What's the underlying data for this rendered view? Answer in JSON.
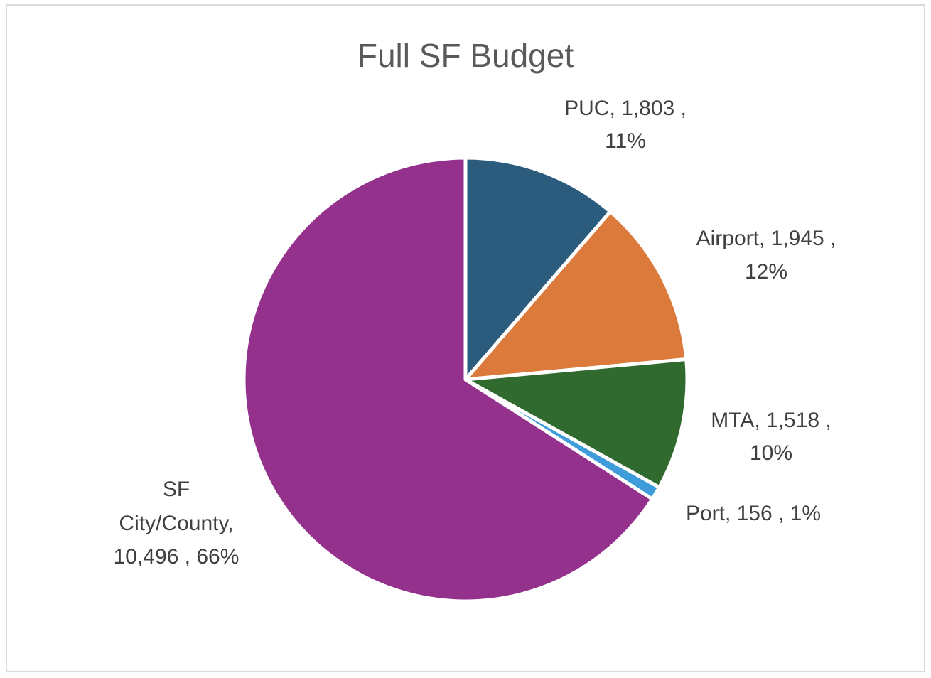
{
  "chart_data": {
    "type": "pie",
    "title": "Full SF Budget",
    "categories": [
      "PUC",
      "Airport",
      "MTA",
      "Port",
      "SF City/County"
    ],
    "values": [
      1803,
      1945,
      1518,
      156,
      10496
    ],
    "percents": [
      "11%",
      "12%",
      "10%",
      "1%",
      "66%"
    ],
    "colors": [
      "#2b5c7e",
      "#dc7a3c",
      "#316a2e",
      "#3d9cd9",
      "#93318c"
    ],
    "start_angle_deg": 0,
    "direction": "clockwise",
    "labels": [
      {
        "category": "PUC",
        "lines": [
          "PUC, 1,803  ,",
          "11%"
        ]
      },
      {
        "category": "Airport",
        "lines": [
          "Airport, 1,945  ,",
          "12%"
        ]
      },
      {
        "category": "MTA",
        "lines": [
          "MTA, 1,518  ,",
          "10%"
        ]
      },
      {
        "category": "Port",
        "lines": [
          "Port, 156  , 1%"
        ]
      },
      {
        "category": "SF City/County",
        "lines": [
          "SF",
          "City/County,",
          "10,496  , 66%"
        ]
      }
    ],
    "legend": "none"
  }
}
